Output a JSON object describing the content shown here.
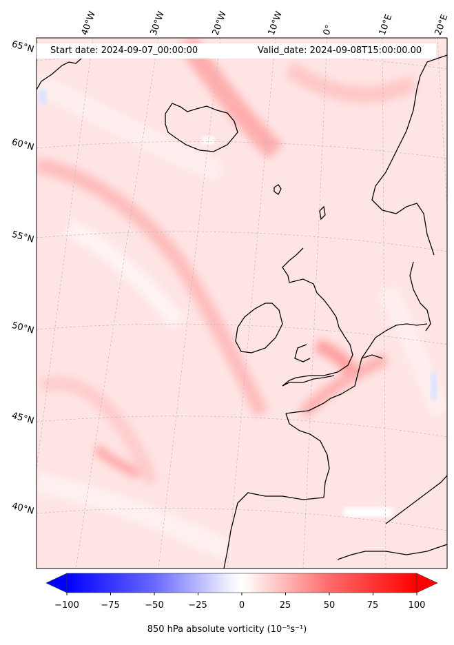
{
  "header": {
    "start_date": "Start date: 2024-09-07_00:00:00",
    "valid_date": "Valid_date: 2024-09-08T15:00:00.00"
  },
  "longitude_labels": [
    "40°W",
    "30°W",
    "20°W",
    "10°W",
    "0°",
    "10°E",
    "20°E"
  ],
  "latitude_labels": [
    "65°N",
    "60°N",
    "55°N",
    "50°N",
    "45°N",
    "40°N"
  ],
  "colorbar": {
    "ticks": [
      "−100",
      "−75",
      "−50",
      "−25",
      "0",
      "25",
      "50",
      "75",
      "100"
    ],
    "label": "850 hPa absolute vorticity",
    "units": "(10⁻⁵s⁻¹)",
    "min": -100,
    "max": 100,
    "negative_color": "#0000ff",
    "positive_color": "#ff0000",
    "extend": "both"
  },
  "colors": {
    "background_field": "#ffe0e0",
    "coastline": "#000000",
    "gridline": "#b0b0b0"
  }
}
